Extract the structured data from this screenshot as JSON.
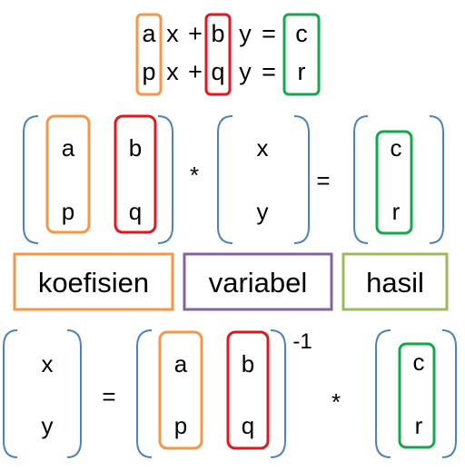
{
  "colors": {
    "orange": "#f79646",
    "red": "#e3161d",
    "green": "#13a84c",
    "purple": "#8064a2",
    "lime": "#9bbb59",
    "bracket": "#4f81bd",
    "text": "#000000"
  },
  "equations": {
    "row1": {
      "a": "a",
      "x": "x",
      "plus": "+",
      "b": "b",
      "y": "y",
      "eq": "=",
      "c": "c"
    },
    "row2": {
      "a": "p",
      "x": "x",
      "plus": "+",
      "b": "q",
      "y": "y",
      "eq": "=",
      "c": "r"
    }
  },
  "matrix_eq": {
    "coef": [
      "a",
      "p",
      "b",
      "q"
    ],
    "times": "*",
    "vars": [
      "x",
      "y"
    ],
    "equals": "=",
    "result": [
      "c",
      "r"
    ]
  },
  "labels": {
    "coef": "koefisien",
    "vars": "variabel",
    "result": "hasil"
  },
  "solution": {
    "vars": [
      "x",
      "y"
    ],
    "equals": "=",
    "coef": [
      "a",
      "p",
      "b",
      "q"
    ],
    "inverse": "-1",
    "times": "*",
    "result": [
      "c",
      "r"
    ]
  }
}
